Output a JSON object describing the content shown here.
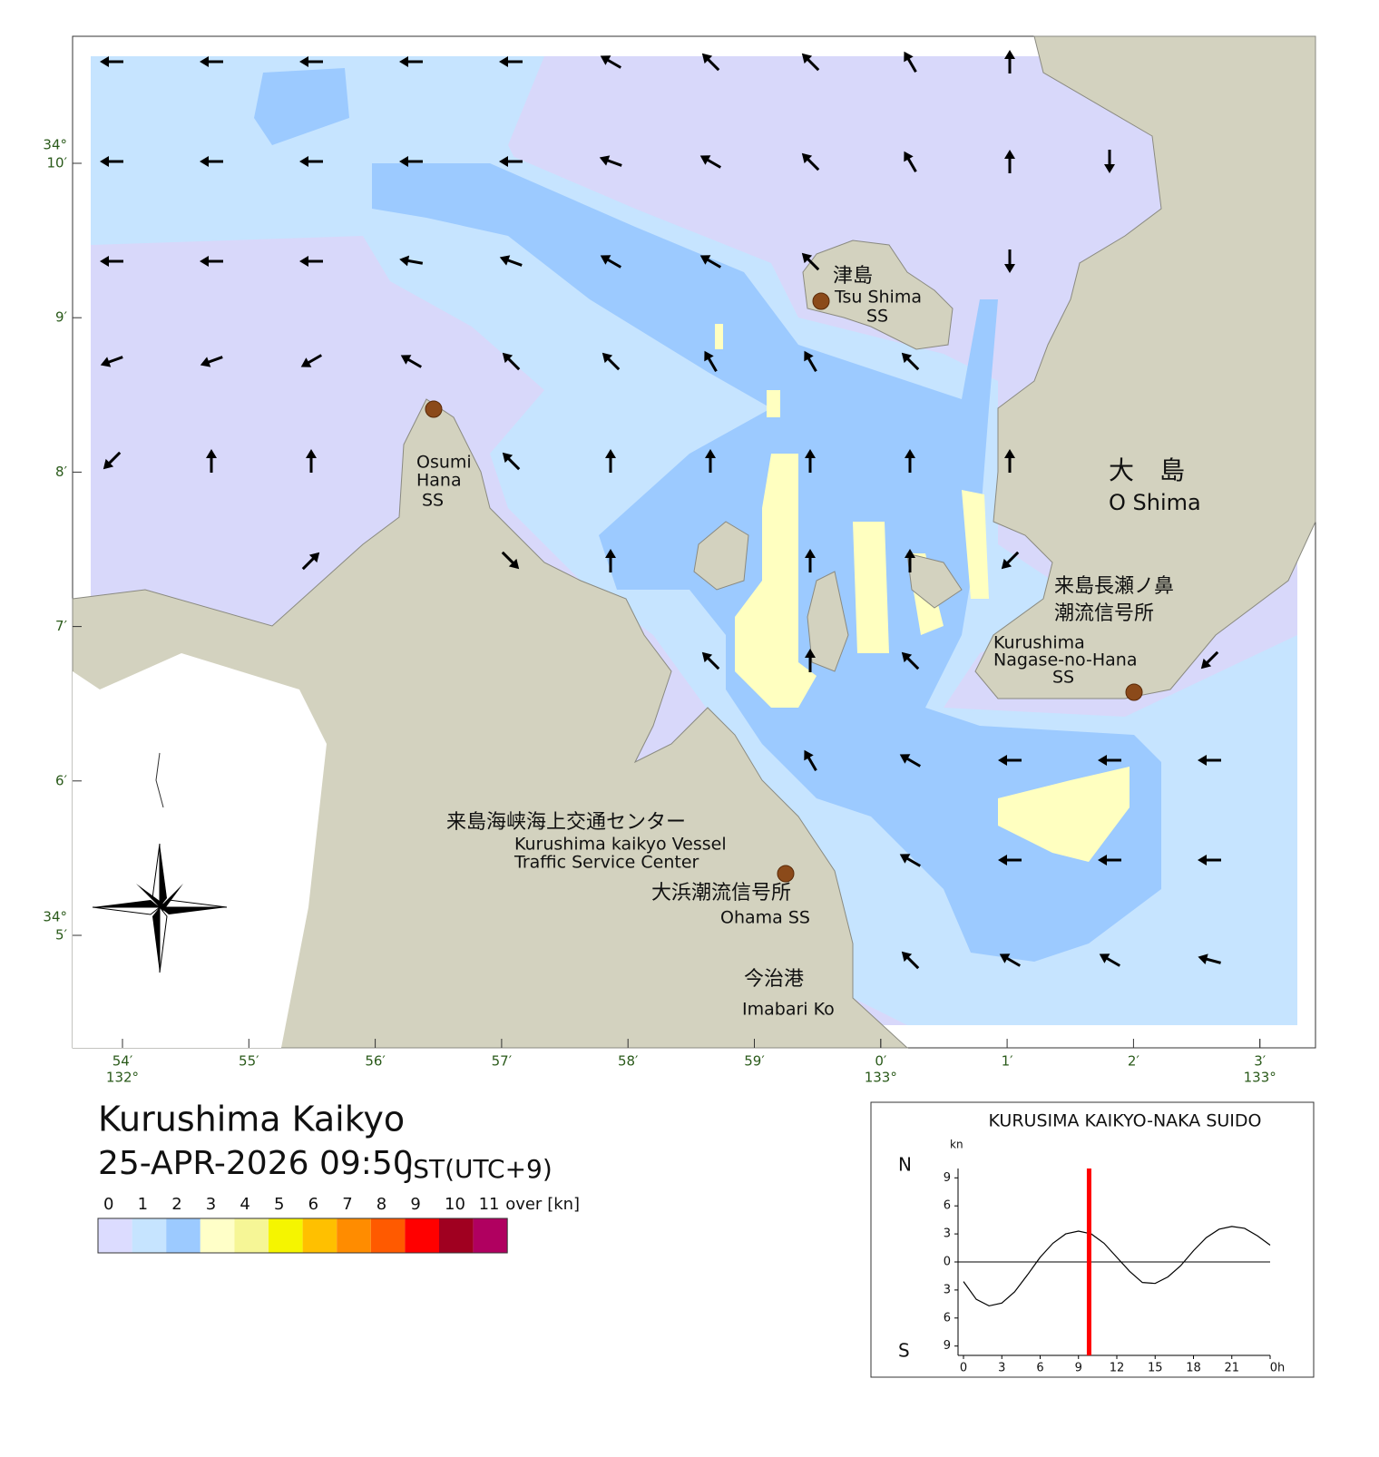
{
  "title": "Kurushima Kaikyo",
  "datetime": "25-APR-2026 09:50",
  "timezone": "JST(UTC+9)",
  "map": {
    "labels": {
      "tsushima_jp": "津島",
      "tsushima_en": "Tsu Shima",
      "tsushima_ss": "SS",
      "osumi_1": "Osumi",
      "osumi_2": "Hana",
      "osumi_3": "SS",
      "oshima_jp": "大　島",
      "oshima_en": "O Shima",
      "nagase_jp1": "来島長瀬ノ鼻",
      "nagase_jp2": "潮流信号所",
      "nagase_en1": "Kurushima",
      "nagase_en2": "Nagase-no-Hana",
      "nagase_en3": "SS",
      "vts_jp": "来島海峡海上交通センター",
      "vts_en1": "Kurushima kaikyo Vessel",
      "vts_en2": "Traffic Service Center",
      "ohama_jp": "大浜潮流信号所",
      "ohama_en": "Ohama SS",
      "imabari_jp": "今治港",
      "imabari_en": "Imabari Ko"
    },
    "lon_labels": [
      [
        "54′",
        "132°"
      ],
      [
        "55′"
      ],
      [
        "56′"
      ],
      [
        "57′"
      ],
      [
        "58′"
      ],
      [
        "59′"
      ],
      [
        "0′",
        "133°"
      ],
      [
        "1′"
      ],
      [
        "2′"
      ],
      [
        "3′",
        "133°"
      ]
    ],
    "lat_labels": [
      [
        "34°",
        "10′"
      ],
      [
        "9′"
      ],
      [
        "8′"
      ],
      [
        "7′"
      ],
      [
        "6′"
      ],
      [
        "34°",
        "5′"
      ]
    ],
    "current_directions": [
      [
        180,
        180,
        180,
        180,
        180,
        150,
        135,
        135,
        120,
        90,
        null,
        null
      ],
      [
        180,
        180,
        180,
        180,
        180,
        160,
        150,
        135,
        120,
        90,
        -90,
        null
      ],
      [
        180,
        180,
        180,
        170,
        160,
        150,
        150,
        135,
        null,
        -90,
        null,
        null
      ],
      [
        200,
        200,
        210,
        150,
        135,
        135,
        120,
        120,
        135,
        null,
        null,
        null
      ],
      [
        225,
        90,
        90,
        null,
        135,
        90,
        90,
        90,
        90,
        90,
        null,
        null
      ],
      [
        null,
        null,
        45,
        null,
        -45,
        90,
        null,
        90,
        90,
        225,
        null,
        null
      ],
      [
        null,
        null,
        null,
        null,
        null,
        null,
        135,
        90,
        135,
        null,
        null,
        225
      ],
      [
        null,
        null,
        null,
        null,
        null,
        null,
        null,
        120,
        150,
        180,
        180,
        180
      ],
      [
        null,
        null,
        null,
        null,
        null,
        null,
        null,
        null,
        150,
        180,
        180,
        180
      ],
      [
        null,
        null,
        null,
        null,
        null,
        null,
        null,
        null,
        135,
        150,
        150,
        165
      ]
    ]
  },
  "legend": {
    "labels": [
      "0",
      "1",
      "2",
      "3",
      "4",
      "5",
      "6",
      "7",
      "8",
      "9",
      "10",
      "11",
      "over"
    ],
    "unit": "[kn]",
    "colors": [
      "#dcdcff",
      "#c6e4ff",
      "#9ccaff",
      "#ffffc8",
      "#f6f696",
      "#f5f500",
      "#ffc000",
      "#ff8c00",
      "#ff5a00",
      "#ff0000",
      "#a00020",
      "#b00060"
    ]
  },
  "chart_data": {
    "type": "line",
    "title": "KURUSIMA KAIKYO-NAKA SUIDO",
    "y_unit": "kn",
    "y_top_label": "N",
    "y_bottom_label": "S",
    "x": [
      0,
      1,
      2,
      3,
      4,
      5,
      6,
      7,
      8,
      9,
      10,
      11,
      12,
      13,
      14,
      15,
      16,
      17,
      18,
      19,
      20,
      21,
      22,
      23,
      24
    ],
    "series": [
      {
        "color": "#000000",
        "values": [
          -2.1,
          -4.0,
          -4.7,
          -4.4,
          -3.2,
          -1.4,
          0.5,
          2.0,
          3.0,
          3.3,
          3.0,
          2.0,
          0.5,
          -1.0,
          -2.2,
          -2.3,
          -1.6,
          -0.4,
          1.2,
          2.6,
          3.5,
          3.8,
          3.6,
          2.8,
          1.8
        ]
      }
    ],
    "xlim": [
      0,
      24
    ],
    "xticks": [
      0,
      3,
      6,
      9,
      12,
      15,
      18,
      21,
      {
        "value": 24,
        "label": "0h"
      }
    ],
    "ylim": [
      -10,
      10
    ],
    "yticks": [
      9,
      6,
      3,
      0,
      {
        "value": -3,
        "label": "3"
      },
      {
        "value": -6,
        "label": "6"
      },
      {
        "value": -9,
        "label": "9"
      }
    ],
    "time_marker": {
      "x": 9.83,
      "color": "#ff0000"
    }
  }
}
